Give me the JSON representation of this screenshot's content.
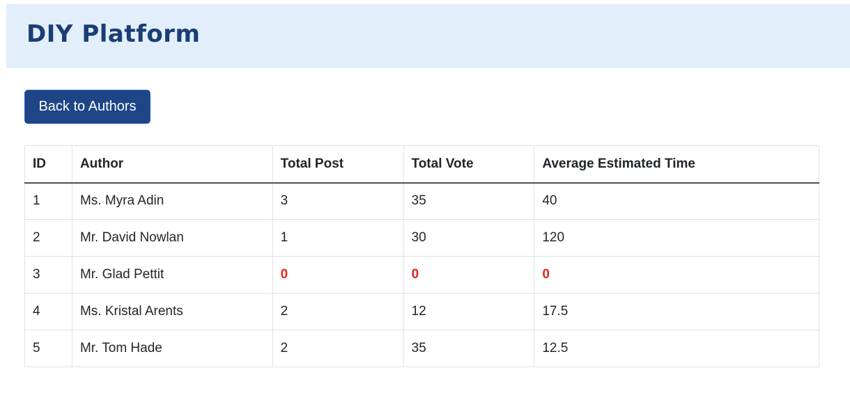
{
  "header": {
    "brand": "DIY Platform"
  },
  "actions": {
    "back_label": "Back to Authors"
  },
  "table": {
    "columns": [
      "ID",
      "Author",
      "Total Post",
      "Total Vote",
      "Average Estimated Time"
    ],
    "rows": [
      {
        "id": "1",
        "author": "Ms. Myra Adin",
        "total_post": "3",
        "total_vote": "35",
        "avg_time": "40"
      },
      {
        "id": "2",
        "author": "Mr. David Nowlan",
        "total_post": "1",
        "total_vote": "30",
        "avg_time": "120"
      },
      {
        "id": "3",
        "author": "Mr. Glad Pettit",
        "total_post": "0",
        "total_vote": "0",
        "avg_time": "0"
      },
      {
        "id": "4",
        "author": "Ms. Kristal Arents",
        "total_post": "2",
        "total_vote": "12",
        "avg_time": "17.5"
      },
      {
        "id": "5",
        "author": "Mr. Tom Hade",
        "total_post": "2",
        "total_vote": "35",
        "avg_time": "12.5"
      }
    ]
  },
  "colors": {
    "header_bg": "#e2effb",
    "brand_text": "#1b3e73",
    "button_bg": "#1e4686",
    "zero_value": "#e0281c"
  }
}
